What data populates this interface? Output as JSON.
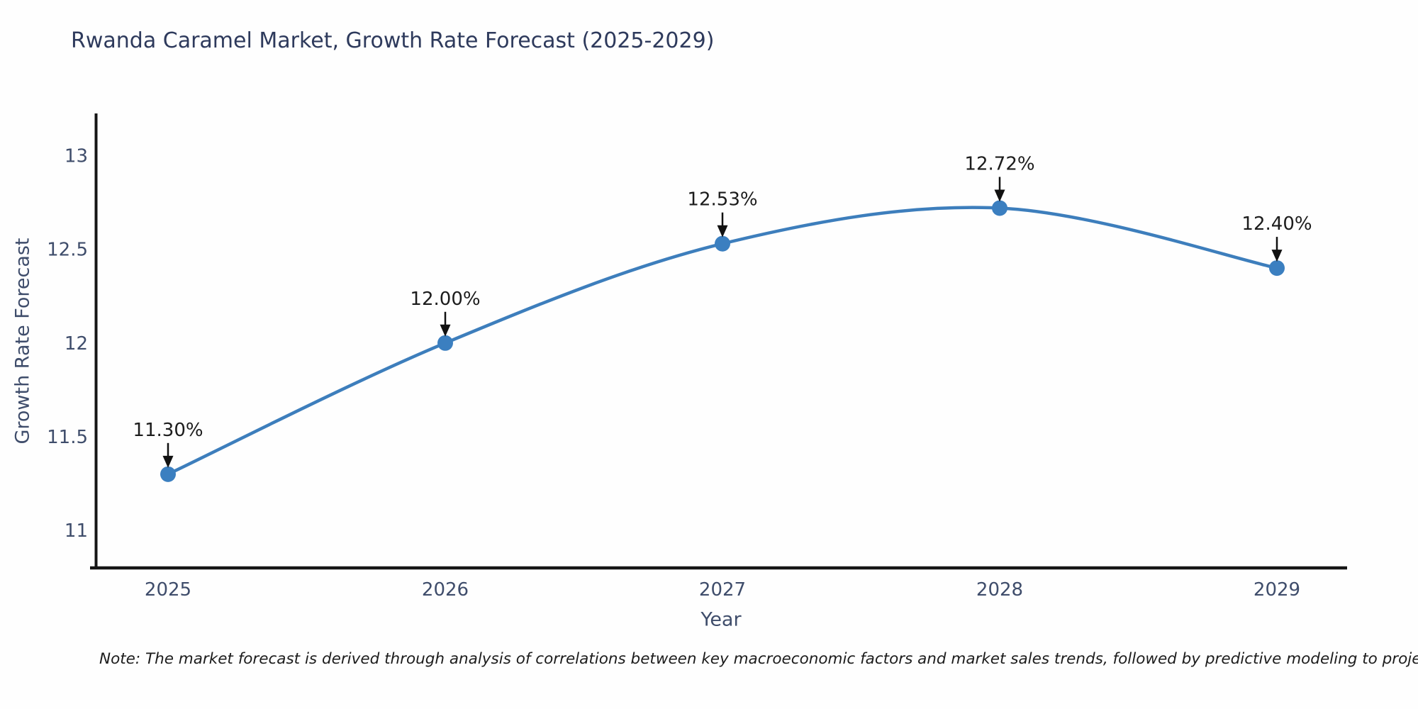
{
  "chart_data": {
    "type": "line",
    "title": "Rwanda Caramel Market, Growth Rate Forecast (2025-2029)",
    "xlabel": "Year",
    "ylabel": "Growth Rate Forecast",
    "x": [
      2025,
      2026,
      2027,
      2028,
      2029
    ],
    "x_tick_labels": [
      "2025",
      "2026",
      "2027",
      "2028",
      "2029"
    ],
    "series": [
      {
        "name": "Growth Rate Forecast",
        "values": [
          11.3,
          12.0,
          12.53,
          12.72,
          12.4
        ],
        "point_labels": [
          "11.30%",
          "12.00%",
          "12.53%",
          "12.72%",
          "12.40%"
        ]
      }
    ],
    "y_ticks": [
      13,
      12.5,
      12,
      11.5,
      11
    ],
    "y_tick_labels": [
      "13",
      "12.5",
      "12",
      "11.5",
      "11"
    ],
    "ylim": [
      10.8,
      13.225
    ],
    "grid": false,
    "legend_position": "none",
    "annotation_arrow_style": "down-arrow-to-point",
    "colors": {
      "line": "#3d7ebc",
      "marker": "#3b7fc0",
      "axis": "#151515",
      "tick_label": "#3f4d6b",
      "axis_title": "#3f4d6b",
      "title": "#2e3a5c",
      "annotation_text": "#1c1c1c",
      "annotation_arrow": "#111111",
      "background": "#fefefe"
    }
  },
  "footnote": "Note: The market forecast is derived through analysis of correlations between key macroeconomic factors and market sales trends, followed by predictive modeling to project future sal"
}
